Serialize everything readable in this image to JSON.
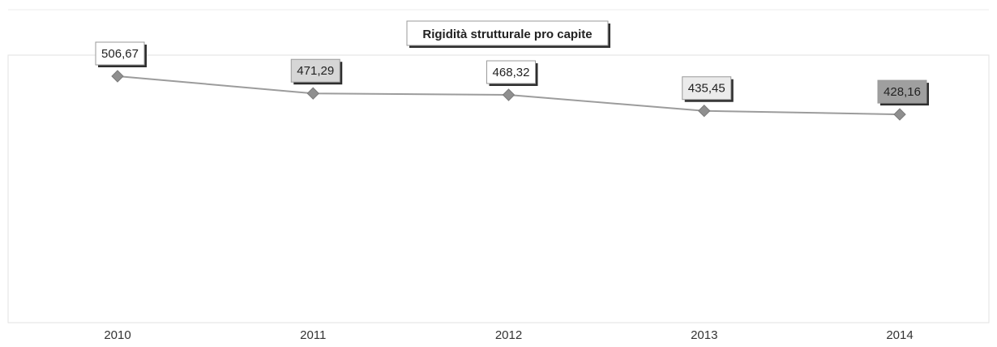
{
  "chart_data": {
    "type": "line",
    "title": "Rigidità strutturale pro capite",
    "xlabel": "",
    "ylabel": "",
    "categories": [
      "2010",
      "2011",
      "2012",
      "2013",
      "2014"
    ],
    "series": [
      {
        "values": [
          506.67,
          471.29,
          468.32,
          435.45,
          428.16
        ],
        "labels": [
          "506,67",
          "471,29",
          "468,32",
          "435,45",
          "428,16"
        ],
        "label_fills": [
          "#ffffff",
          "#d6d6d6",
          "#ffffff",
          "#ebebeb",
          "#9f9f9f"
        ]
      }
    ],
    "ylim": [
      0,
      550
    ],
    "grid": false,
    "legend": "none",
    "colors": {
      "line": "#9c9c9c",
      "marker": "#8f8f8f",
      "text": "#222222",
      "axis_text": "#333333",
      "frame": "#e2e2e2",
      "shadow": "#2e2e2e"
    }
  }
}
